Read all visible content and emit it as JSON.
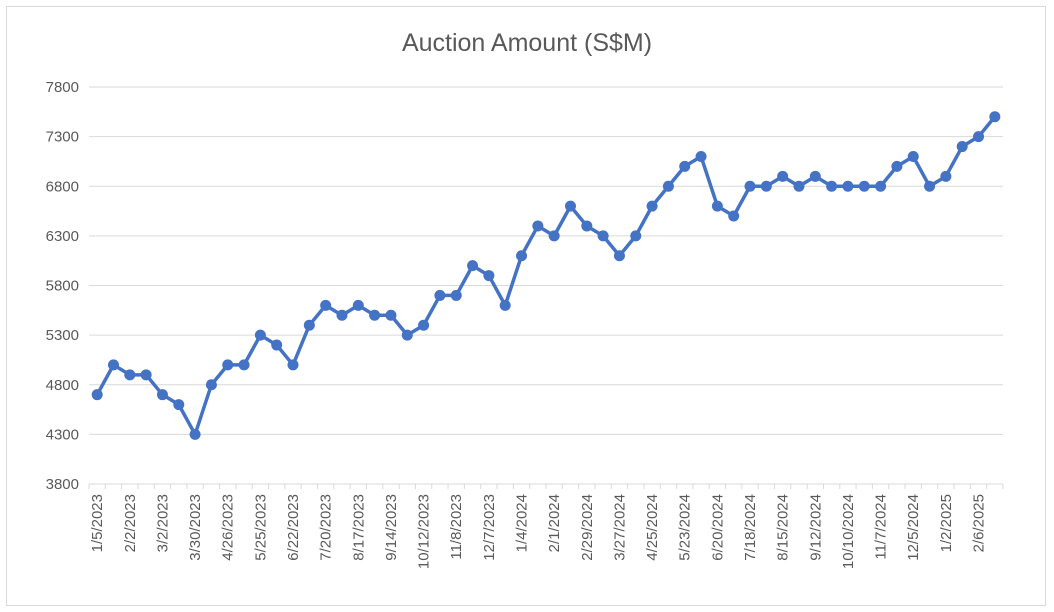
{
  "chart_data": {
    "type": "line",
    "title": "Auction Amount (S$M)",
    "xlabel": "",
    "ylabel": "",
    "ylim": [
      3800,
      7800
    ],
    "y_ticks": [
      3800,
      4300,
      4800,
      5300,
      5800,
      6300,
      6800,
      7300,
      7800
    ],
    "grid": "horizontal",
    "legend": "none",
    "line_color": "#4472C4",
    "x_tick_labels": [
      "1/5/2023",
      "2/2/2023",
      "3/2/2023",
      "3/30/2023",
      "4/26/2023",
      "5/25/2023",
      "6/22/2023",
      "7/20/2023",
      "8/17/2023",
      "9/14/2023",
      "10/12/2023",
      "11/8/2023",
      "12/7/2023",
      "1/4/2024",
      "2/1/2024",
      "2/29/2024",
      "3/27/2024",
      "4/25/2024",
      "5/23/2024",
      "6/20/2024",
      "7/18/2024",
      "8/15/2024",
      "9/12/2024",
      "10/10/2024",
      "11/7/2024",
      "12/5/2024",
      "1/2/2025",
      "2/6/2025"
    ],
    "series": [
      {
        "values": [
          4700,
          5000,
          4900,
          4900,
          4700,
          4600,
          4300,
          4800,
          5000,
          5000,
          5300,
          5200,
          5000,
          5400,
          5600,
          5500,
          5600,
          5500,
          5500,
          5300,
          5400,
          5700,
          5700,
          6000,
          5900,
          5600,
          6100,
          6400,
          6300,
          6600,
          6400,
          6300,
          6100,
          6300,
          6600,
          6800,
          7000,
          7100,
          6600,
          6500,
          6800,
          6800,
          6900,
          6800,
          6900,
          6800,
          6800,
          6800,
          6800,
          7000,
          7100,
          6800,
          6900,
          7200,
          7300,
          7500
        ]
      }
    ]
  }
}
